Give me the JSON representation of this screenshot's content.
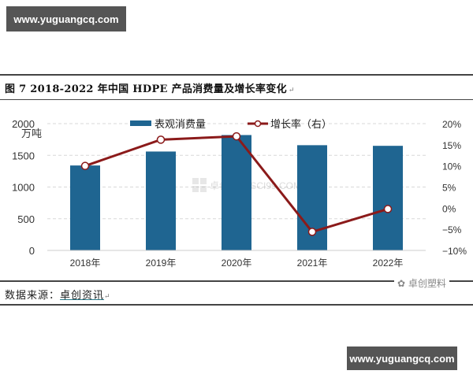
{
  "watermarks": {
    "top": "www.yuguangcq.com",
    "bottom": "www.yuguangcq.com"
  },
  "figure": {
    "title": "图 7  2018-2022 年中国 HDPE 产品消费量及增长率变化",
    "return_mark": "↵",
    "source_label": "数据来源：",
    "source_link": "卓创资讯",
    "wechat_mark": "卓创塑料",
    "chart_watermark": "卓创资讯 SCI99.COM"
  },
  "colors": {
    "bar": "#1f6591",
    "line": "#8b1a1a",
    "marker_fill": "#ffffff",
    "grid": "#d8d8d8"
  },
  "chart_data": {
    "type": "bar+line",
    "title": "图 7 2018-2022 年中国 HDPE 产品消费量及增长率变化",
    "categories": [
      "2018年",
      "2019年",
      "2020年",
      "2021年",
      "2022年"
    ],
    "series": [
      {
        "name": "表观消费量",
        "type": "bar",
        "axis": "left",
        "unit": "万吨",
        "values": [
          1340,
          1560,
          1820,
          1660,
          1650
        ]
      },
      {
        "name": "增长率（右）",
        "type": "line",
        "axis": "right",
        "unit": "%",
        "values": [
          10.0,
          16.2,
          17.0,
          -5.6,
          -0.2
        ]
      }
    ],
    "left_axis": {
      "label": "万吨",
      "ylim": [
        0,
        2000
      ],
      "ticks": [
        "0",
        "500",
        "1000",
        "1500",
        "2000"
      ]
    },
    "right_axis": {
      "ylim": [
        -10,
        20
      ],
      "ticks": [
        "-10%",
        "-5%",
        "0%",
        "5%",
        "10%",
        "15%",
        "20%"
      ]
    },
    "legend": {
      "position": "top",
      "entries": [
        "表观消费量",
        "增长率（右）"
      ]
    },
    "grid": true
  }
}
